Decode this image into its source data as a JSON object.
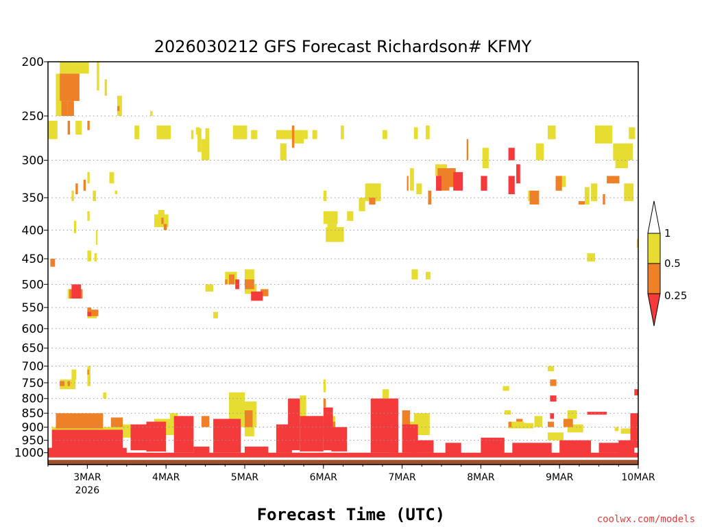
{
  "chart_data": {
    "type": "heatmap",
    "title": "2026030212 GFS Forecast Richardson# KFMY",
    "xlabel": "Forecast Time (UTC)",
    "ylabel": "",
    "credit": "coolwx.com/models",
    "y_scale": "log-pressure",
    "ylim": [
      1050,
      200
    ],
    "y_ticks": [
      200,
      250,
      300,
      350,
      400,
      450,
      500,
      550,
      600,
      650,
      700,
      750,
      800,
      850,
      900,
      950,
      1000
    ],
    "xlim": [
      -0.5,
      7
    ],
    "x_ticks": [
      {
        "pos": 0,
        "label": "3MAR",
        "sublabel": "2026"
      },
      {
        "pos": 1,
        "label": "4MAR"
      },
      {
        "pos": 2,
        "label": "5MAR"
      },
      {
        "pos": 3,
        "label": "6MAR"
      },
      {
        "pos": 4,
        "label": "7MAR"
      },
      {
        "pos": 5,
        "label": "8MAR"
      },
      {
        "pos": 6,
        "label": "9MAR"
      },
      {
        "pos": 7,
        "label": "10MAR"
      }
    ],
    "grid_y": true,
    "colors": {
      "lt025": "#f43a3a",
      "r025_05": "#ee8128",
      "r05_1": "#e6dc32",
      "ground": "#a0522d"
    },
    "legend": {
      "placement": "right",
      "labels": [
        "1",
        "0.5",
        "0.25"
      ]
    },
    "cell_x_width_days": 0.125,
    "ground_p": 1030,
    "series": [
      {
        "name": "r05_1",
        "cells": [
          [
            -0.35,
            200,
            210,
            0.37
          ],
          [
            -0.4,
            210,
            250,
            0.15
          ],
          [
            -0.5,
            255,
            275,
            0.12
          ],
          [
            -0.15,
            255,
            270,
            0.08
          ],
          [
            0.12,
            200,
            225,
            0.03
          ],
          [
            0.22,
            215,
            230,
            0.03
          ],
          [
            0.38,
            230,
            250,
            0.06
          ],
          [
            0.8,
            245,
            250,
            0.03
          ],
          [
            0.6,
            260,
            275,
            0.06
          ],
          [
            0.88,
            260,
            275,
            0.18
          ],
          [
            1.32,
            265,
            275,
            0.03
          ],
          [
            1.38,
            262,
            270,
            0.05
          ],
          [
            1.4,
            263,
            290,
            0.05
          ],
          [
            1.5,
            263,
            277,
            0.05
          ],
          [
            1.45,
            275,
            300,
            0.1
          ],
          [
            1.85,
            260,
            275,
            0.18
          ],
          [
            2.08,
            265,
            275,
            0.08
          ],
          [
            2.4,
            265,
            275,
            0.22
          ],
          [
            2.62,
            265,
            280,
            0.13
          ],
          [
            2.45,
            280,
            300,
            0.08
          ],
          [
            2.75,
            265,
            275,
            0.05
          ],
          [
            2.86,
            265,
            275,
            0.06
          ],
          [
            3.22,
            260,
            275,
            0.04
          ],
          [
            3.75,
            265,
            275,
            0.06
          ],
          [
            4.15,
            262,
            275,
            0.05
          ],
          [
            4.3,
            260,
            275,
            0.05
          ],
          [
            5.85,
            260,
            275,
            0.1
          ],
          [
            6.45,
            260,
            280,
            0.22
          ],
          [
            6.88,
            262,
            275,
            0.08
          ],
          [
            0.0,
            315,
            330,
            0.03
          ],
          [
            0.28,
            315,
            330,
            0.06
          ],
          [
            0.35,
            340,
            345,
            0.03
          ],
          [
            -0.2,
            340,
            355,
            0.03
          ],
          [
            0.07,
            340,
            355,
            0.04
          ],
          [
            0.0,
            370,
            385,
            0.03
          ],
          [
            -0.17,
            385,
            405,
            0.03
          ],
          [
            0.11,
            400,
            425,
            0.02
          ],
          [
            0.09,
            440,
            455,
            0.03
          ],
          [
            0.0,
            435,
            455,
            0.05
          ],
          [
            0.85,
            375,
            395,
            0.18
          ],
          [
            0.9,
            368,
            378,
            0.08
          ],
          [
            3.0,
            370,
            390,
            0.18
          ],
          [
            3.03,
            395,
            420,
            0.23
          ],
          [
            3.3,
            370,
            385,
            0.08
          ],
          [
            3.05,
            390,
            410,
            0.12
          ],
          [
            3.53,
            330,
            355,
            0.2
          ],
          [
            3.45,
            350,
            370,
            0.08
          ],
          [
            3.0,
            340,
            355,
            0.04
          ],
          [
            4.1,
            310,
            340,
            0.05
          ],
          [
            4.42,
            305,
            320,
            0.15
          ],
          [
            4.18,
            330,
            345,
            0.07
          ],
          [
            5.7,
            280,
            300,
            0.1
          ],
          [
            5.02,
            285,
            310,
            0.08
          ],
          [
            5.6,
            340,
            355,
            0.08
          ],
          [
            6.68,
            280,
            300,
            0.25
          ],
          [
            6.71,
            300,
            310,
            0.16
          ],
          [
            6.4,
            330,
            355,
            0.08
          ],
          [
            6.0,
            320,
            335,
            0.08
          ],
          [
            6.32,
            335,
            360,
            0.06
          ],
          [
            6.82,
            330,
            355,
            0.12
          ],
          [
            7.0,
            310,
            325,
            0.02
          ],
          [
            6.98,
            415,
            430,
            0.03
          ],
          [
            6.35,
            440,
            455,
            0.1
          ],
          [
            5.35,
            440,
            455,
            0.0
          ],
          [
            4.12,
            470,
            490,
            0.08
          ],
          [
            4.3,
            475,
            490,
            0.06
          ],
          [
            1.75,
            475,
            500,
            0.15
          ],
          [
            2.0,
            470,
            495,
            0.12
          ],
          [
            1.5,
            500,
            515,
            0.1
          ],
          [
            2.0,
            500,
            520,
            0.15
          ],
          [
            1.6,
            560,
            575,
            0.06
          ],
          [
            -0.25,
            510,
            530,
            0.17
          ],
          [
            0.0,
            555,
            575,
            0.12
          ],
          [
            5.85,
            700,
            715,
            0.08
          ],
          [
            5.85,
            920,
            950,
            0.2
          ],
          [
            6.1,
            890,
            920,
            0.2
          ],
          [
            5.28,
            760,
            775,
            0.08
          ],
          [
            5.3,
            840,
            855,
            0.08
          ],
          [
            5.35,
            880,
            905,
            0.2
          ],
          [
            5.55,
            885,
            905,
            0.12
          ],
          [
            5.68,
            860,
            900,
            0.1
          ],
          [
            6.78,
            905,
            925,
            0.12
          ],
          [
            6.1,
            840,
            870,
            0.12
          ],
          [
            6.7,
            900,
            915,
            0.05
          ],
          [
            7.0,
            700,
            735,
            0.04
          ],
          [
            -0.35,
            740,
            770,
            0.2
          ],
          [
            -0.2,
            710,
            740,
            0.06
          ],
          [
            0.0,
            700,
            760,
            0.04
          ],
          [
            0.2,
            780,
            800,
            0.04
          ],
          [
            -0.45,
            900,
            950,
            0.85
          ],
          [
            0.35,
            890,
            940,
            0.35
          ],
          [
            0.85,
            870,
            930,
            0.25
          ],
          [
            1.05,
            850,
            880,
            0.1
          ],
          [
            1.8,
            780,
            870,
            0.2
          ],
          [
            1.95,
            810,
            900,
            0.2
          ],
          [
            2.7,
            790,
            870,
            0.08
          ],
          [
            2.85,
            860,
            900,
            0.3
          ],
          [
            3.75,
            770,
            800,
            0.08
          ],
          [
            4.15,
            850,
            930,
            0.2
          ],
          [
            4.05,
            880,
            960,
            0.15
          ],
          [
            3.0,
            740,
            780,
            0.03
          ],
          [
            2.65,
            830,
            860,
            0.08
          ],
          [
            2.0,
            900,
            935,
            0.12
          ],
          [
            7.0,
            830,
            860,
            0.05
          ],
          [
            6.92,
            870,
            880,
            0.08
          ]
        ]
      },
      {
        "name": "r025_05",
        "cells": [
          [
            -0.35,
            210,
            235,
            0.25
          ],
          [
            -0.33,
            235,
            250,
            0.08
          ],
          [
            -0.25,
            235,
            250,
            0.08
          ],
          [
            -0.25,
            255,
            270,
            0.03
          ],
          [
            -0.0,
            255,
            265,
            0.03
          ],
          [
            0.38,
            240,
            245,
            0.03
          ],
          [
            -0.15,
            330,
            345,
            0.03
          ],
          [
            -0.05,
            325,
            340,
            0.03
          ],
          [
            -0.47,
            450,
            465,
            0.06
          ],
          [
            -0.23,
            510,
            530,
            0.17
          ],
          [
            0.02,
            555,
            570,
            0.12
          ],
          [
            0.0,
            550,
            560,
            0.05
          ],
          [
            0.97,
            390,
            400,
            0.04
          ],
          [
            0.94,
            380,
            390,
            0.03
          ],
          [
            2.6,
            260,
            285,
            0.03
          ],
          [
            1.8,
            480,
            500,
            0.07
          ],
          [
            2.0,
            490,
            510,
            0.12
          ],
          [
            1.75,
            490,
            500,
            0.03
          ],
          [
            2.2,
            510,
            525,
            0.1
          ],
          [
            3.58,
            350,
            360,
            0.08
          ],
          [
            4.06,
            320,
            340,
            0.02
          ],
          [
            4.33,
            340,
            360,
            0.04
          ],
          [
            4.45,
            310,
            340,
            0.15
          ],
          [
            4.6,
            310,
            335,
            0.08
          ],
          [
            5.62,
            340,
            360,
            0.12
          ],
          [
            4.82,
            275,
            300,
            0.02
          ],
          [
            6.24,
            355,
            360,
            0.08
          ],
          [
            6.55,
            345,
            360,
            0.03
          ],
          [
            6.68,
            320,
            330,
            0.08
          ],
          [
            5.95,
            320,
            340,
            0.08
          ],
          [
            6.6,
            320,
            330,
            0.1
          ],
          [
            -0.35,
            745,
            760,
            0.06
          ],
          [
            -0.25,
            745,
            760,
            0.03
          ],
          [
            0.0,
            710,
            725,
            0.02
          ],
          [
            5.88,
            740,
            760,
            0.08
          ],
          [
            6.05,
            870,
            900,
            0.12
          ],
          [
            5.45,
            870,
            880,
            0.08
          ],
          [
            6.9,
            900,
            920,
            0.1
          ],
          [
            -0.4,
            850,
            905,
            0.6
          ],
          [
            1.18,
            860,
            880,
            0.03
          ],
          [
            0.3,
            865,
            900,
            0.15
          ],
          [
            1.45,
            860,
            900,
            0.1
          ],
          [
            2.0,
            840,
            900,
            0.1
          ],
          [
            2.85,
            880,
            935,
            0.3
          ],
          [
            3.0,
            800,
            830,
            0.03
          ],
          [
            4.0,
            840,
            900,
            0.1
          ],
          [
            5.35,
            880,
            900,
            0.04
          ],
          [
            5.85,
            880,
            900,
            0.08
          ],
          [
            6.92,
            880,
            900,
            0.08
          ]
        ]
      },
      {
        "name": "lt025",
        "cells": [
          [
            -0.2,
            500,
            530,
            0.12
          ],
          [
            0.0,
            560,
            570,
            0.05
          ],
          [
            1.88,
            490,
            510,
            0.05
          ],
          [
            2.08,
            515,
            535,
            0.15
          ],
          [
            4.43,
            320,
            340,
            0.07
          ],
          [
            4.65,
            315,
            340,
            0.12
          ],
          [
            5.35,
            285,
            300,
            0.08
          ],
          [
            5.35,
            320,
            345,
            0.08
          ],
          [
            5.0,
            320,
            340,
            0.08
          ],
          [
            5.45,
            305,
            330,
            0.05
          ],
          [
            5.88,
            790,
            810,
            0.08
          ],
          [
            6.9,
            850,
            900,
            0.1
          ],
          [
            6.9,
            860,
            980,
            0.1
          ],
          [
            6.95,
            770,
            790,
            0.06
          ],
          [
            5.88,
            850,
            870,
            0.05
          ],
          [
            6.35,
            845,
            855,
            0.25
          ],
          [
            -0.45,
            910,
            1005,
            0.9
          ],
          [
            0.55,
            890,
            990,
            0.35
          ],
          [
            0.75,
            880,
            995,
            0.25
          ],
          [
            1.1,
            860,
            1000,
            0.25
          ],
          [
            1.6,
            870,
            1000,
            0.35
          ],
          [
            2.55,
            800,
            990,
            0.15
          ],
          [
            2.7,
            860,
            995,
            0.3
          ],
          [
            3.0,
            830,
            990,
            0.12
          ],
          [
            3.1,
            900,
            995,
            0.2
          ],
          [
            3.6,
            800,
            1000,
            0.35
          ],
          [
            4.0,
            890,
            1000,
            0.2
          ],
          [
            2.4,
            890,
            1000,
            0.2
          ],
          [
            3.85,
            890,
            1000,
            0.1
          ],
          [
            4.1,
            950,
            1000,
            0.3
          ],
          [
            4.55,
            960,
            1005,
            0.2
          ],
          [
            5.0,
            940,
            1005,
            0.3
          ],
          [
            5.4,
            960,
            1005,
            0.5
          ],
          [
            6.0,
            950,
            1005,
            0.4
          ],
          [
            6.5,
            960,
            1000,
            0.35
          ],
          [
            6.75,
            950,
            1005,
            0.2
          ],
          [
            -0.5,
            1000,
            1020,
            7.5
          ],
          [
            2.0,
            975,
            1005,
            0.3
          ],
          [
            1.35,
            975,
            1005,
            0.2
          ],
          [
            -0.5,
            980,
            1010,
            1.0
          ]
        ]
      }
    ]
  }
}
